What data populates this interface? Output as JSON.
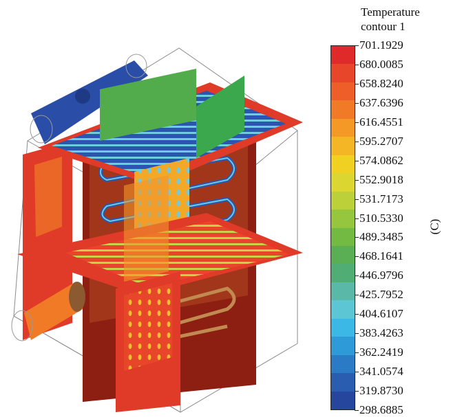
{
  "legend": {
    "title_line1": "Temperature",
    "title_line2": "contour 1",
    "unit": "(C)",
    "ticks": [
      "701.1929",
      "680.0085",
      "658.8240",
      "637.6396",
      "616.4551",
      "595.2707",
      "574.0862",
      "552.9018",
      "531.7173",
      "510.5330",
      "489.3485",
      "468.1641",
      "446.9796",
      "425.7952",
      "404.6107",
      "383.4263",
      "362.2419",
      "341.0574",
      "319.8730",
      "298.6885"
    ],
    "colors": [
      "#e02a2a",
      "#e8462a",
      "#ee5e28",
      "#f07a26",
      "#f49826",
      "#f4b624",
      "#f0d020",
      "#dcd630",
      "#bcd03a",
      "#96c63e",
      "#72ba42",
      "#5aae54",
      "#50ae74",
      "#5ab8a8",
      "#5cc6d4",
      "#3cb8e6",
      "#2e9ad8",
      "#2a7ac6",
      "#2a5cb0",
      "#26459c"
    ]
  }
}
